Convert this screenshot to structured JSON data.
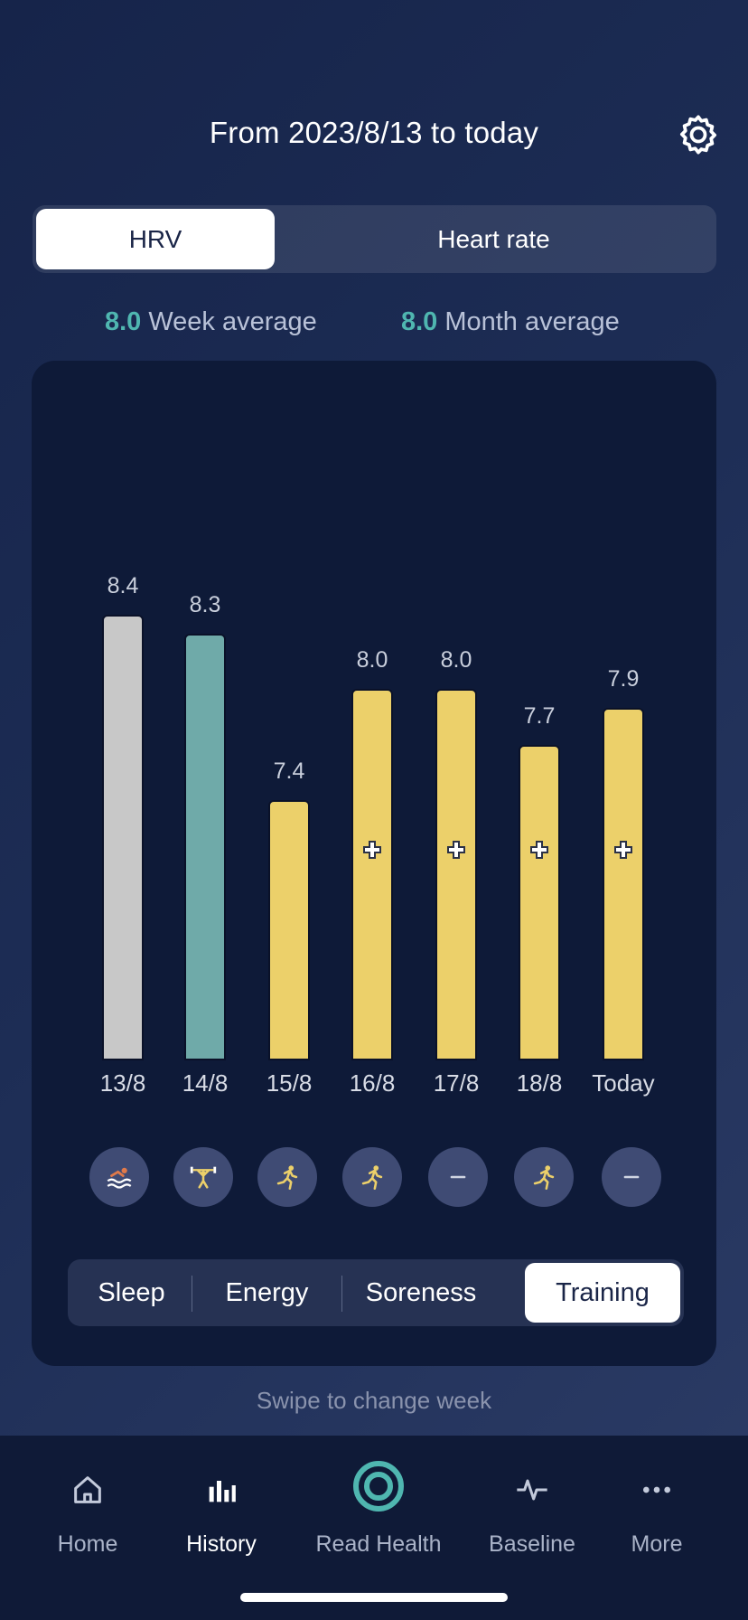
{
  "header": {
    "title": "From 2023/8/13 to today",
    "settings_icon": "gear-icon"
  },
  "metric_tabs": [
    {
      "label": "HRV",
      "active": true
    },
    {
      "label": "Heart rate",
      "active": false
    }
  ],
  "averages": {
    "week": {
      "value": "8.0",
      "label": "Week average"
    },
    "month": {
      "value": "8.0",
      "label": "Month average"
    }
  },
  "chart_data": {
    "type": "bar",
    "categories": [
      "13/8",
      "14/8",
      "15/8",
      "16/8",
      "17/8",
      "18/8",
      "Today"
    ],
    "values": [
      8.4,
      8.3,
      7.4,
      8.0,
      8.0,
      7.7,
      7.9
    ],
    "value_labels": [
      "8.4",
      "8.3",
      "7.4",
      "8.0",
      "8.0",
      "7.7",
      "7.9"
    ],
    "bar_colors": [
      "#c8c8c8",
      "#6faaa9",
      "#ecd06a",
      "#ecd06a",
      "#ecd06a",
      "#ecd06a",
      "#ecd06a"
    ],
    "plus_marker": [
      false,
      false,
      false,
      true,
      true,
      true,
      true
    ],
    "ylim": [
      6.0,
      8.6
    ],
    "grid": false,
    "title": "",
    "xlabel": "",
    "ylabel": ""
  },
  "activities": [
    {
      "icon": "swimming-icon",
      "color": "#e07a4a"
    },
    {
      "icon": "weightlifting-icon",
      "color": "#ecd06a"
    },
    {
      "icon": "running-icon",
      "color": "#ecd06a"
    },
    {
      "icon": "running-icon",
      "color": "#ecd06a"
    },
    {
      "icon": "rest-dash-icon",
      "color": "#d0d5e2"
    },
    {
      "icon": "running-icon",
      "color": "#ecd06a"
    },
    {
      "icon": "rest-dash-icon",
      "color": "#d0d5e2"
    }
  ],
  "filter_tabs": [
    {
      "label": "Sleep",
      "active": false
    },
    {
      "label": "Energy",
      "active": false
    },
    {
      "label": "Soreness",
      "active": false
    },
    {
      "label": "Training",
      "active": true
    }
  ],
  "hint": "Swipe to change week",
  "nav": [
    {
      "label": "Home",
      "icon": "home-icon",
      "active": false
    },
    {
      "label": "History",
      "icon": "bar-chart-icon",
      "active": true
    },
    {
      "label": "Read Health",
      "icon": "ring-icon",
      "active": false
    },
    {
      "label": "Baseline",
      "icon": "pulse-icon",
      "active": false
    },
    {
      "label": "More",
      "icon": "more-dots-icon",
      "active": false
    }
  ],
  "colors": {
    "accent": "#4fb6b0",
    "yellow": "#ecd06a",
    "teal_bar": "#6faaa9",
    "gray_bar": "#c8c8c8",
    "card_bg": "#0e1a38"
  }
}
